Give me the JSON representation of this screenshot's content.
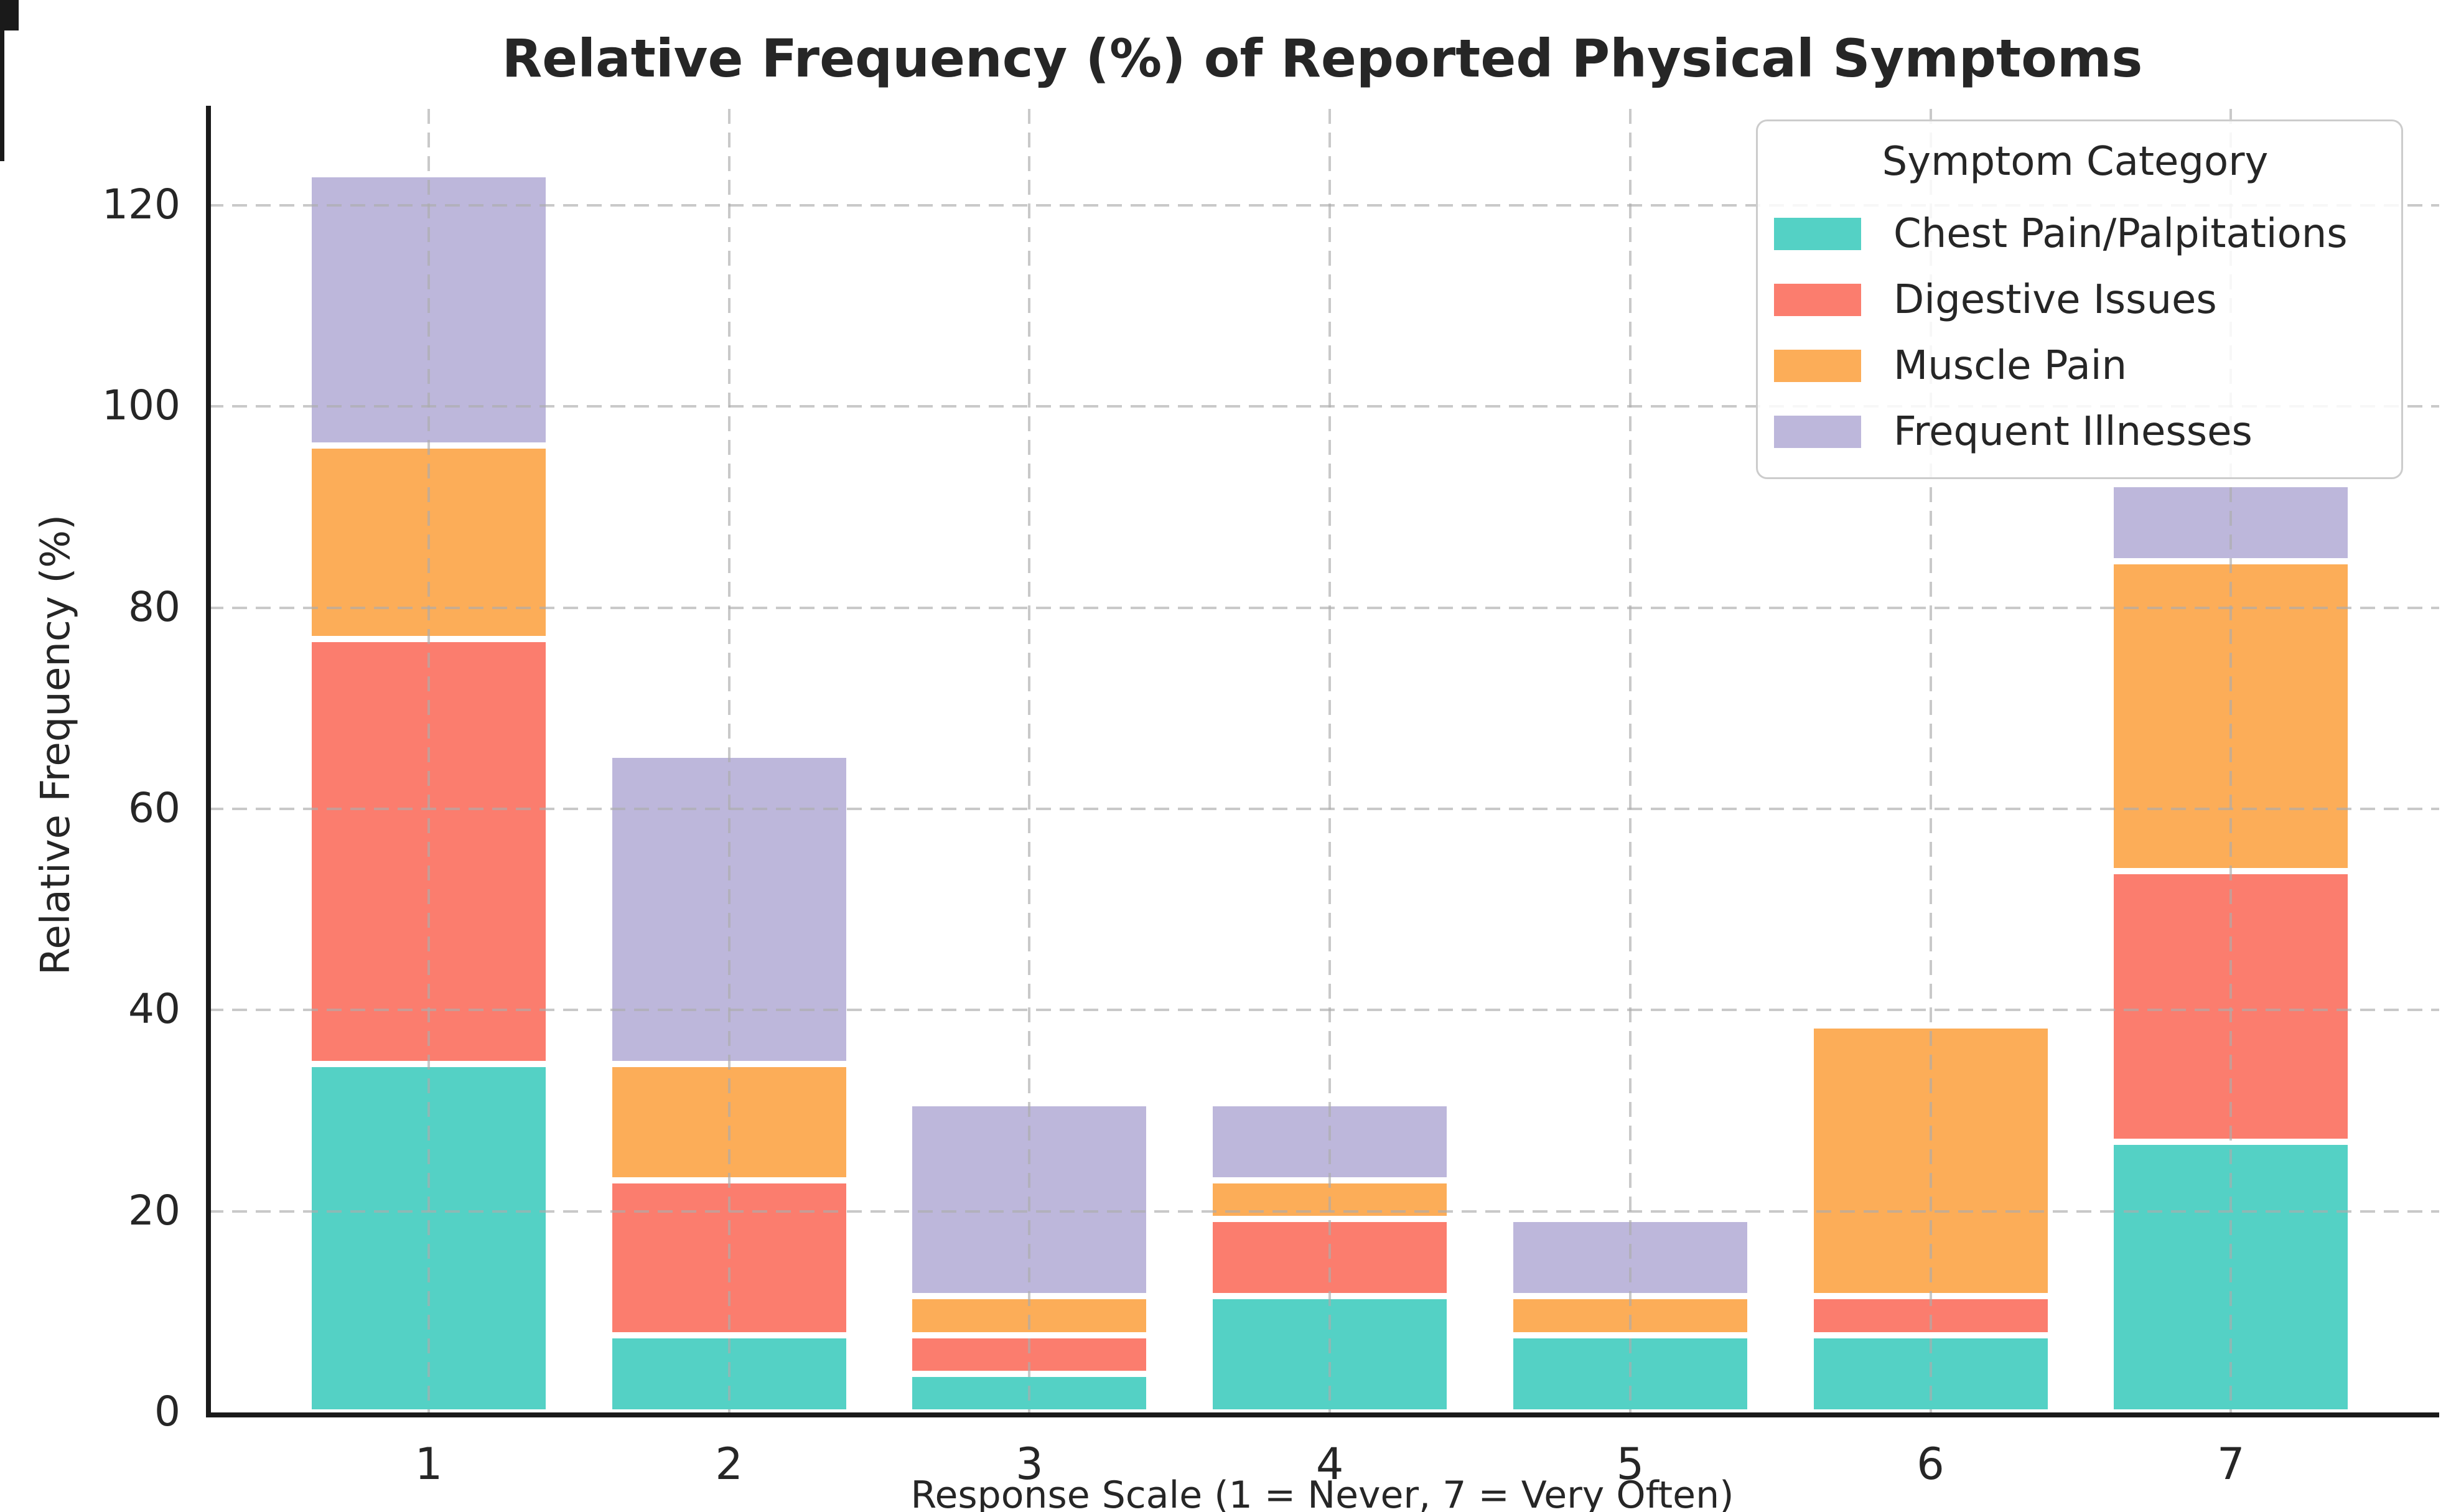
{
  "chart_data": {
    "type": "bar",
    "stacked": true,
    "title": "Relative Frequency (%) of Reported Physical Symptoms",
    "xlabel": "Response Scale (1 = Never, 7 = Very Often)",
    "ylabel": "Relative Frequency (%)",
    "categories": [
      "1",
      "2",
      "3",
      "4",
      "5",
      "6",
      "7"
    ],
    "yticks": [
      0,
      20,
      40,
      60,
      80,
      100,
      120
    ],
    "ylim": [
      0,
      129.6
    ],
    "grid": "dashed gray horizontal lines at y-ticks and vertical lines at category centers",
    "legend_title": "Symptom Category",
    "legend_position": "upper right",
    "series": [
      {
        "name": "Chest Pain/Palpitations",
        "color": "#54D1C5",
        "values": [
          34.615,
          7.692,
          3.846,
          11.538,
          7.692,
          7.692,
          26.923
        ]
      },
      {
        "name": "Digestive Issues",
        "color": "#FB7D6E",
        "values": [
          42.308,
          15.385,
          3.846,
          7.692,
          0,
          3.846,
          26.923
        ]
      },
      {
        "name": "Muscle Pain",
        "color": "#FCAD58",
        "values": [
          19.231,
          11.538,
          3.846,
          3.846,
          3.846,
          26.923,
          30.769
        ]
      },
      {
        "name": "Frequent Illnesses",
        "color": "#BDB7DB",
        "values": [
          26.923,
          30.769,
          19.231,
          7.692,
          7.692,
          0,
          7.692
        ]
      }
    ],
    "bar_totals": [
      123.077,
      65.385,
      30.769,
      30.769,
      19.231,
      38.462,
      92.308
    ]
  }
}
